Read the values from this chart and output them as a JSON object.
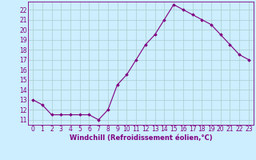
{
  "x": [
    0,
    1,
    2,
    3,
    4,
    5,
    6,
    7,
    8,
    9,
    10,
    11,
    12,
    13,
    14,
    15,
    16,
    17,
    18,
    19,
    20,
    21,
    22,
    23
  ],
  "y": [
    13.0,
    12.5,
    11.5,
    11.5,
    11.5,
    11.5,
    11.5,
    11.0,
    12.0,
    14.5,
    15.5,
    17.0,
    18.5,
    19.5,
    21.0,
    22.5,
    22.0,
    21.5,
    21.0,
    20.5,
    19.5,
    18.5,
    17.5,
    17.0
  ],
  "line_color": "#800080",
  "marker": "D",
  "marker_size": 1.8,
  "line_width": 0.8,
  "xlabel": "Windchill (Refroidissement éolien,°C)",
  "xlabel_fontsize": 6.0,
  "yticks": [
    11,
    12,
    13,
    14,
    15,
    16,
    17,
    18,
    19,
    20,
    21,
    22
  ],
  "xlim": [
    -0.5,
    23.5
  ],
  "ylim": [
    10.5,
    22.8
  ],
  "background_color": "#cceeff",
  "grid_color": "#aacccc",
  "tick_fontsize": 5.5
}
